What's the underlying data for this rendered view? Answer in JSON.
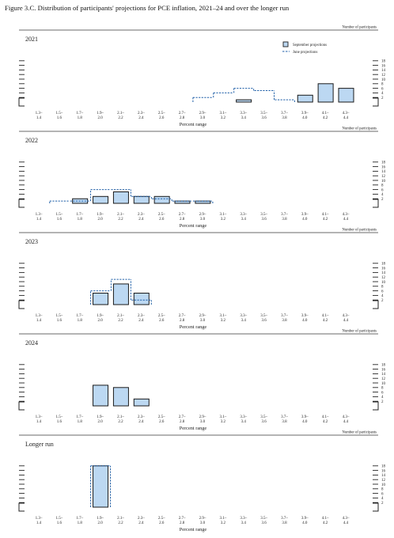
{
  "figure_title": "Figure 3.C. Distribution of participants' projections for PCE inflation, 2021–24 and over the longer run",
  "colors": {
    "september_fill": "#bcd8f2",
    "september_stroke": "#1a1a1a",
    "june_stroke": "#1f5fa8",
    "rule": "#6a6a6a"
  },
  "chart_data": [
    {
      "type": "bar",
      "title": "2021",
      "xlabel": "Percent range",
      "ylabel": "Number of participants",
      "ylim": [
        0,
        18
      ],
      "yticks": [
        2,
        4,
        6,
        8,
        10,
        12,
        14,
        16,
        18
      ],
      "grid": false,
      "legend": {
        "position": "top-right",
        "entries": [
          "September projections",
          "June projections"
        ]
      },
      "categories": [
        [
          "1.3–",
          "1.4"
        ],
        [
          "1.5–",
          "1.6"
        ],
        [
          "1.7–",
          "1.8"
        ],
        [
          "1.9–",
          "2.0"
        ],
        [
          "2.1–",
          "2.2"
        ],
        [
          "2.3–",
          "2.4"
        ],
        [
          "2.5–",
          "2.6"
        ],
        [
          "2.7–",
          "2.8"
        ],
        [
          "2.9–",
          "3.0"
        ],
        [
          "3.1–",
          "3.2"
        ],
        [
          "3.3–",
          "3.4"
        ],
        [
          "3.5–",
          "3.6"
        ],
        [
          "3.7–",
          "3.8"
        ],
        [
          "3.9–",
          "4.0"
        ],
        [
          "4.1–",
          "4.2"
        ],
        [
          "4.3–",
          "4.4"
        ]
      ],
      "series": [
        {
          "name": "September projections",
          "values": [
            0,
            0,
            0,
            0,
            0,
            0,
            0,
            0,
            0,
            0,
            1,
            0,
            0,
            3,
            8,
            6
          ]
        },
        {
          "name": "June projections",
          "values": [
            0,
            0,
            0,
            0,
            0,
            0,
            0,
            0,
            2,
            4,
            6,
            5,
            1,
            0,
            0,
            0
          ]
        }
      ]
    },
    {
      "type": "bar",
      "title": "2022",
      "xlabel": "Percent range",
      "ylabel": "Number of participants",
      "ylim": [
        0,
        18
      ],
      "yticks": [
        2,
        4,
        6,
        8,
        10,
        12,
        14,
        16,
        18
      ],
      "grid": false,
      "categories": [
        [
          "1.3–",
          "1.4"
        ],
        [
          "1.5–",
          "1.6"
        ],
        [
          "1.7–",
          "1.8"
        ],
        [
          "1.9–",
          "2.0"
        ],
        [
          "2.1–",
          "2.2"
        ],
        [
          "2.3–",
          "2.4"
        ],
        [
          "2.5–",
          "2.6"
        ],
        [
          "2.7–",
          "2.8"
        ],
        [
          "2.9–",
          "3.0"
        ],
        [
          "3.1–",
          "3.2"
        ],
        [
          "3.3–",
          "3.4"
        ],
        [
          "3.5–",
          "3.6"
        ],
        [
          "3.7–",
          "3.8"
        ],
        [
          "3.9–",
          "4.0"
        ],
        [
          "4.1–",
          "4.2"
        ],
        [
          "4.3–",
          "4.4"
        ]
      ],
      "series": [
        {
          "name": "September projections",
          "values": [
            0,
            0,
            2,
            3,
            5,
            3,
            3,
            1,
            1,
            0,
            0,
            0,
            0,
            0,
            0,
            0
          ]
        },
        {
          "name": "June projections",
          "values": [
            0,
            1,
            1,
            6,
            6,
            3,
            2,
            1,
            1,
            0,
            0,
            0,
            0,
            0,
            0,
            0
          ]
        }
      ]
    },
    {
      "type": "bar",
      "title": "2023",
      "xlabel": "Percent range",
      "ylabel": "Number of participants",
      "ylim": [
        0,
        18
      ],
      "yticks": [
        2,
        4,
        6,
        8,
        10,
        12,
        14,
        16,
        18
      ],
      "grid": false,
      "categories": [
        [
          "1.3–",
          "1.4"
        ],
        [
          "1.5–",
          "1.6"
        ],
        [
          "1.7–",
          "1.8"
        ],
        [
          "1.9–",
          "2.0"
        ],
        [
          "2.1–",
          "2.2"
        ],
        [
          "2.3–",
          "2.4"
        ],
        [
          "2.5–",
          "2.6"
        ],
        [
          "2.7–",
          "2.8"
        ],
        [
          "2.9–",
          "3.0"
        ],
        [
          "3.1–",
          "3.2"
        ],
        [
          "3.3–",
          "3.4"
        ],
        [
          "3.5–",
          "3.6"
        ],
        [
          "3.7–",
          "3.8"
        ],
        [
          "3.9–",
          "4.0"
        ],
        [
          "4.1–",
          "4.2"
        ],
        [
          "4.3–",
          "4.4"
        ]
      ],
      "series": [
        {
          "name": "September projections",
          "values": [
            0,
            0,
            0,
            5,
            9,
            5,
            0,
            0,
            0,
            0,
            0,
            0,
            0,
            0,
            0,
            0
          ]
        },
        {
          "name": "June projections",
          "values": [
            0,
            0,
            0,
            6,
            11,
            2,
            0,
            0,
            0,
            0,
            0,
            0,
            0,
            0,
            0,
            0
          ]
        }
      ]
    },
    {
      "type": "bar",
      "title": "2024",
      "xlabel": "Percent range",
      "ylabel": "Number of participants",
      "ylim": [
        0,
        18
      ],
      "yticks": [
        2,
        4,
        6,
        8,
        10,
        12,
        14,
        16,
        18
      ],
      "grid": false,
      "categories": [
        [
          "1.3–",
          "1.4"
        ],
        [
          "1.5–",
          "1.6"
        ],
        [
          "1.7–",
          "1.8"
        ],
        [
          "1.9–",
          "2.0"
        ],
        [
          "2.1–",
          "2.2"
        ],
        [
          "2.3–",
          "2.4"
        ],
        [
          "2.5–",
          "2.6"
        ],
        [
          "2.7–",
          "2.8"
        ],
        [
          "2.9–",
          "3.0"
        ],
        [
          "3.1–",
          "3.2"
        ],
        [
          "3.3–",
          "3.4"
        ],
        [
          "3.5–",
          "3.6"
        ],
        [
          "3.7–",
          "3.8"
        ],
        [
          "3.9–",
          "4.0"
        ],
        [
          "4.1–",
          "4.2"
        ],
        [
          "4.3–",
          "4.4"
        ]
      ],
      "series": [
        {
          "name": "September projections",
          "values": [
            0,
            0,
            0,
            9,
            8,
            3,
            0,
            0,
            0,
            0,
            0,
            0,
            0,
            0,
            0,
            0
          ]
        }
      ]
    },
    {
      "type": "bar",
      "title": "Longer run",
      "xlabel": "Percent range",
      "ylabel": "Number of participants",
      "ylim": [
        0,
        18
      ],
      "yticks": [
        2,
        4,
        6,
        8,
        10,
        12,
        14,
        16,
        18
      ],
      "grid": false,
      "categories": [
        [
          "1.3–",
          "1.4"
        ],
        [
          "1.5–",
          "1.6"
        ],
        [
          "1.7–",
          "1.8"
        ],
        [
          "1.9–",
          "2.0"
        ],
        [
          "2.1–",
          "2.2"
        ],
        [
          "2.3–",
          "2.4"
        ],
        [
          "2.5–",
          "2.6"
        ],
        [
          "2.7–",
          "2.8"
        ],
        [
          "2.9–",
          "3.0"
        ],
        [
          "3.1–",
          "3.2"
        ],
        [
          "3.3–",
          "3.4"
        ],
        [
          "3.5–",
          "3.6"
        ],
        [
          "3.7–",
          "3.8"
        ],
        [
          "3.9–",
          "4.0"
        ],
        [
          "4.1–",
          "4.2"
        ],
        [
          "4.3–",
          "4.4"
        ]
      ],
      "series": [
        {
          "name": "September projections",
          "values": [
            0,
            0,
            0,
            18,
            0,
            0,
            0,
            0,
            0,
            0,
            0,
            0,
            0,
            0,
            0,
            0
          ]
        },
        {
          "name": "June projections",
          "values": [
            0,
            0,
            0,
            18,
            0,
            0,
            0,
            0,
            0,
            0,
            0,
            0,
            0,
            0,
            0,
            0
          ]
        }
      ]
    }
  ]
}
